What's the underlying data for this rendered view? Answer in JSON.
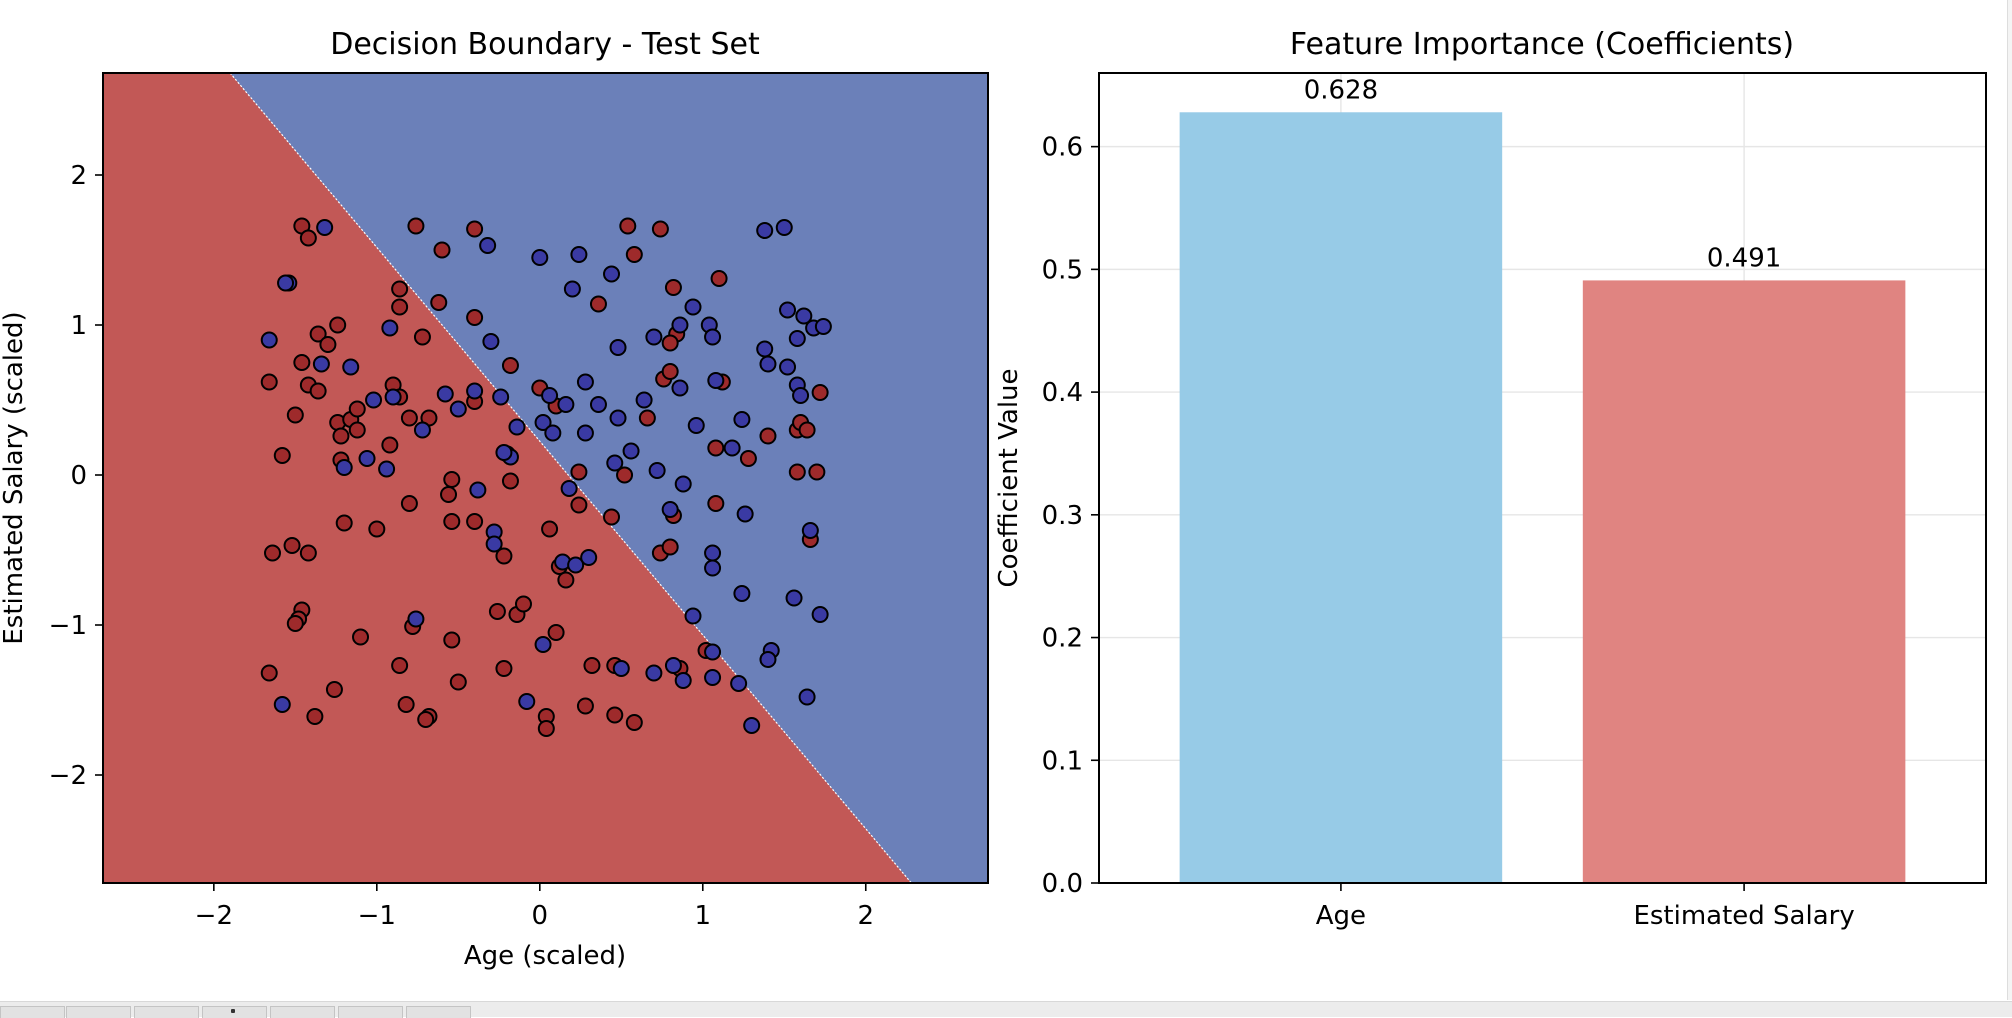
{
  "colors": {
    "region_class0": "#c25856",
    "region_class1": "#6b80b9",
    "point_class0": "#9e2a2b",
    "point_class1": "#3a3aa3",
    "bar_age": "#97cbe7",
    "bar_salary": "#e08481",
    "grid": "#e6e6e6",
    "axis": "#000000"
  },
  "chart_data": [
    {
      "type": "scatter",
      "title": "Decision Boundary - Test Set",
      "xlabel": "Age (scaled)",
      "ylabel": "Estimated Salary (scaled)",
      "xlim": [
        -2.68,
        2.75
      ],
      "ylim": [
        -2.72,
        2.68
      ],
      "xticks": [
        -2,
        -1,
        0,
        1,
        2
      ],
      "yticks": [
        -2,
        -1,
        0,
        1,
        2
      ],
      "xtick_labels": [
        "−2",
        "−1",
        "0",
        "1",
        "2"
      ],
      "ytick_labels": [
        "−2",
        "−1",
        "0",
        "1",
        "2"
      ],
      "grid": false,
      "decision_boundary": {
        "x": [
          -1.9,
          2.28
        ],
        "y": [
          2.68,
          -2.72
        ]
      },
      "series": [
        {
          "class": 0,
          "points": [
            [
              -1.46,
              1.66
            ],
            [
              -1.42,
              1.58
            ],
            [
              -0.76,
              1.66
            ],
            [
              -0.6,
              1.5
            ],
            [
              -0.4,
              1.64
            ],
            [
              -1.24,
              1.0
            ],
            [
              -1.36,
              0.94
            ],
            [
              -1.3,
              0.87
            ],
            [
              -0.86,
              1.24
            ],
            [
              -0.86,
              1.12
            ],
            [
              -0.62,
              1.15
            ],
            [
              -0.72,
              0.92
            ],
            [
              -0.4,
              1.05
            ],
            [
              -1.66,
              0.62
            ],
            [
              -1.46,
              0.75
            ],
            [
              -1.42,
              0.6
            ],
            [
              -1.36,
              0.56
            ],
            [
              -1.5,
              0.4
            ],
            [
              -1.24,
              0.35
            ],
            [
              -1.16,
              0.37
            ],
            [
              -1.12,
              0.44
            ],
            [
              -1.12,
              0.3
            ],
            [
              -1.22,
              0.26
            ],
            [
              -0.9,
              0.6
            ],
            [
              -0.8,
              0.38
            ],
            [
              -0.68,
              0.38
            ],
            [
              -0.4,
              0.49
            ],
            [
              -0.18,
              0.73
            ],
            [
              -1.58,
              0.13
            ],
            [
              -1.22,
              0.1
            ],
            [
              -0.92,
              0.2
            ],
            [
              -0.86,
              0.52
            ],
            [
              -0.54,
              -0.03
            ],
            [
              -0.56,
              -0.13
            ],
            [
              -0.8,
              -0.19
            ],
            [
              -0.54,
              -0.31
            ],
            [
              -0.4,
              -0.31
            ],
            [
              -0.18,
              -0.04
            ],
            [
              -1.2,
              -0.32
            ],
            [
              -1.0,
              -0.36
            ],
            [
              -1.64,
              -0.52
            ],
            [
              -1.52,
              -0.47
            ],
            [
              -1.42,
              -0.52
            ],
            [
              -0.22,
              -0.54
            ],
            [
              0.06,
              -0.36
            ],
            [
              0.12,
              -0.61
            ],
            [
              0.16,
              -0.7
            ],
            [
              0.24,
              -0.2
            ],
            [
              0.24,
              0.02
            ],
            [
              0.0,
              0.58
            ],
            [
              0.1,
              0.46
            ],
            [
              -1.46,
              -0.9
            ],
            [
              -1.48,
              -0.96
            ],
            [
              -1.5,
              -0.99
            ],
            [
              -1.1,
              -1.08
            ],
            [
              -0.26,
              -0.91
            ],
            [
              -0.14,
              -0.93
            ],
            [
              -0.1,
              -0.86
            ],
            [
              0.1,
              -1.05
            ],
            [
              -0.78,
              -1.01
            ],
            [
              -0.54,
              -1.1
            ],
            [
              -0.86,
              -1.27
            ],
            [
              -0.22,
              -1.29
            ],
            [
              0.32,
              -1.27
            ],
            [
              0.46,
              -1.27
            ],
            [
              -1.66,
              -1.32
            ],
            [
              -1.26,
              -1.43
            ],
            [
              -0.82,
              -1.53
            ],
            [
              -0.5,
              -1.38
            ],
            [
              0.28,
              -1.54
            ],
            [
              0.46,
              -1.6
            ],
            [
              0.58,
              -1.65
            ],
            [
              -1.38,
              -1.61
            ],
            [
              -0.68,
              -1.61
            ],
            [
              -0.7,
              -1.63
            ],
            [
              0.04,
              -1.61
            ],
            [
              0.04,
              -1.69
            ],
            [
              0.54,
              1.66
            ],
            [
              0.58,
              1.47
            ],
            [
              0.74,
              1.64
            ],
            [
              0.36,
              1.14
            ],
            [
              0.82,
              1.25
            ],
            [
              1.1,
              1.31
            ],
            [
              0.76,
              0.64
            ],
            [
              0.8,
              0.69
            ],
            [
              0.84,
              0.94
            ],
            [
              0.8,
              0.88
            ],
            [
              0.66,
              0.38
            ],
            [
              1.12,
              0.62
            ],
            [
              1.08,
              0.18
            ],
            [
              1.4,
              0.26
            ],
            [
              1.28,
              0.11
            ],
            [
              1.58,
              0.3
            ],
            [
              1.6,
              0.35
            ],
            [
              1.64,
              0.3
            ],
            [
              1.72,
              0.55
            ],
            [
              1.7,
              0.02
            ],
            [
              1.58,
              0.02
            ],
            [
              0.52,
              0.0
            ],
            [
              0.82,
              -0.27
            ],
            [
              1.08,
              -0.19
            ],
            [
              0.44,
              -0.28
            ],
            [
              0.74,
              -0.52
            ],
            [
              0.8,
              -0.48
            ],
            [
              1.66,
              -0.43
            ],
            [
              1.02,
              -1.17
            ],
            [
              0.86,
              -1.29
            ]
          ]
        },
        {
          "class": 1,
          "points": [
            [
              -1.54,
              1.28
            ],
            [
              -1.56,
              1.28
            ],
            [
              -1.32,
              1.65
            ],
            [
              -1.66,
              0.9
            ],
            [
              -1.34,
              0.74
            ],
            [
              -1.16,
              0.72
            ],
            [
              -0.92,
              0.98
            ],
            [
              -1.02,
              0.5
            ],
            [
              -0.9,
              0.52
            ],
            [
              -1.2,
              0.05
            ],
            [
              -1.06,
              0.11
            ],
            [
              -0.94,
              0.04
            ],
            [
              -0.72,
              0.3
            ],
            [
              -0.58,
              0.54
            ],
            [
              -0.5,
              0.44
            ],
            [
              -0.4,
              0.56
            ],
            [
              -0.32,
              1.53
            ],
            [
              -0.3,
              0.89
            ],
            [
              -0.24,
              0.52
            ],
            [
              -0.2,
              0.14
            ],
            [
              -0.18,
              0.12
            ],
            [
              -0.14,
              0.32
            ],
            [
              -0.38,
              -0.1
            ],
            [
              -0.28,
              -0.38
            ],
            [
              -0.28,
              -0.46
            ],
            [
              -0.22,
              0.15
            ],
            [
              0.0,
              1.45
            ],
            [
              0.24,
              1.47
            ],
            [
              0.44,
              1.34
            ],
            [
              0.2,
              1.24
            ],
            [
              0.48,
              0.85
            ],
            [
              0.02,
              0.35
            ],
            [
              0.06,
              0.53
            ],
            [
              0.08,
              0.28
            ],
            [
              0.16,
              0.47
            ],
            [
              0.28,
              0.62
            ],
            [
              0.28,
              0.28
            ],
            [
              0.36,
              0.47
            ],
            [
              0.48,
              0.38
            ],
            [
              0.46,
              0.08
            ],
            [
              0.56,
              0.16
            ],
            [
              0.64,
              0.5
            ],
            [
              0.7,
              0.92
            ],
            [
              0.72,
              0.03
            ],
            [
              0.86,
              1.0
            ],
            [
              0.86,
              0.58
            ],
            [
              0.94,
              1.12
            ],
            [
              0.96,
              0.33
            ],
            [
              1.04,
              1.0
            ],
            [
              1.06,
              0.92
            ],
            [
              1.08,
              0.63
            ],
            [
              1.18,
              0.18
            ],
            [
              1.24,
              0.37
            ],
            [
              1.38,
              0.84
            ],
            [
              1.4,
              0.74
            ],
            [
              1.38,
              1.63
            ],
            [
              1.5,
              1.65
            ],
            [
              1.52,
              1.1
            ],
            [
              1.52,
              0.72
            ],
            [
              1.58,
              0.6
            ],
            [
              1.58,
              0.91
            ],
            [
              1.6,
              0.53
            ],
            [
              1.62,
              1.06
            ],
            [
              1.68,
              0.98
            ],
            [
              1.74,
              0.99
            ],
            [
              0.18,
              -0.09
            ],
            [
              0.14,
              -0.58
            ],
            [
              0.22,
              -0.6
            ],
            [
              0.3,
              -0.55
            ],
            [
              0.8,
              -0.23
            ],
            [
              0.88,
              -0.06
            ],
            [
              1.06,
              -0.52
            ],
            [
              1.06,
              -0.62
            ],
            [
              1.26,
              -0.26
            ],
            [
              1.24,
              -0.79
            ],
            [
              1.56,
              -0.82
            ],
            [
              1.66,
              -0.37
            ],
            [
              1.72,
              -0.93
            ],
            [
              0.94,
              -0.94
            ],
            [
              1.06,
              -1.18
            ],
            [
              1.42,
              -1.17
            ],
            [
              1.4,
              -1.23
            ],
            [
              0.5,
              -1.29
            ],
            [
              0.7,
              -1.32
            ],
            [
              0.82,
              -1.27
            ],
            [
              0.88,
              -1.37
            ],
            [
              1.06,
              -1.35
            ],
            [
              1.22,
              -1.39
            ],
            [
              1.64,
              -1.48
            ],
            [
              0.02,
              -1.13
            ],
            [
              -0.08,
              -1.51
            ],
            [
              -0.76,
              -0.96
            ],
            [
              -1.58,
              -1.53
            ],
            [
              1.3,
              -1.67
            ]
          ]
        }
      ]
    },
    {
      "type": "bar",
      "title": "Feature Importance (Coefficients)",
      "xlabel": "",
      "ylabel": "Coefficient Value",
      "categories": [
        "Age",
        "Estimated Salary"
      ],
      "values": [
        0.628,
        0.491
      ],
      "value_labels": [
        "0.628",
        "0.491"
      ],
      "ylim": [
        0.0,
        0.66
      ],
      "yticks": [
        0.0,
        0.1,
        0.2,
        0.3,
        0.4,
        0.5,
        0.6
      ],
      "ytick_labels": [
        "0.0",
        "0.1",
        "0.2",
        "0.3",
        "0.4",
        "0.5",
        "0.6"
      ],
      "grid": true
    }
  ]
}
